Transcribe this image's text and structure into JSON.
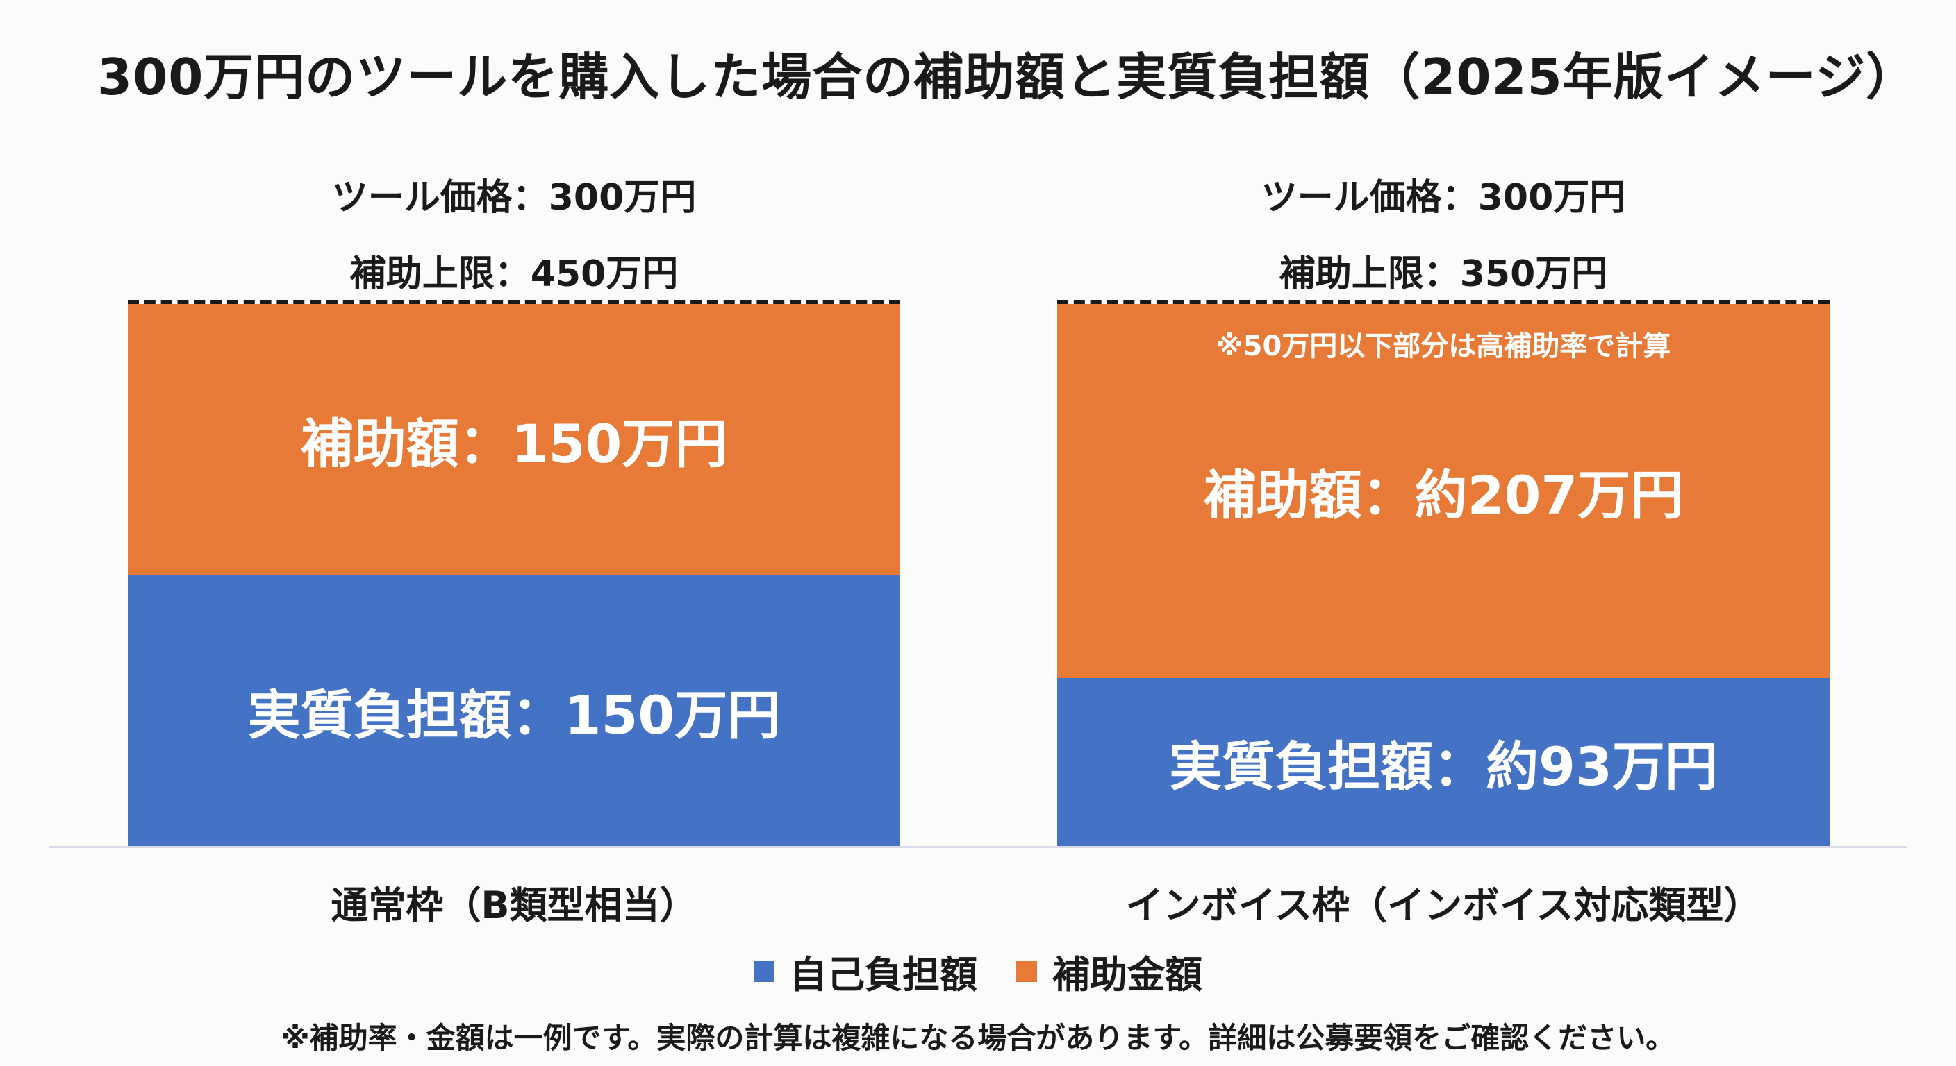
{
  "title": "300万円のツールを購入した場合の補助額と実質負担額（2025年版イメージ）",
  "chart_data": {
    "type": "bar",
    "stacked": true,
    "unit": "万円",
    "categories": [
      "通常枠（B類型相当）",
      "インボイス枠（インボイス対応類型）"
    ],
    "series": [
      {
        "name": "自己負担額",
        "color": "#4472c4",
        "values": [
          150,
          93
        ]
      },
      {
        "name": "補助金額",
        "color": "#e67a36",
        "values": [
          150,
          207
        ]
      }
    ],
    "ylim": [
      0,
      300
    ],
    "grid": false,
    "legend_position": "bottom-center",
    "bars": [
      {
        "price_label": "ツール価格：300万円",
        "cap_label": "補助上限：450万円",
        "subsidy_label": "補助額：150万円",
        "self_label": "実質負担額：150万円",
        "note": ""
      },
      {
        "price_label": "ツール価格：300万円",
        "cap_label": "補助上限：350万円",
        "subsidy_label": "補助額：約207万円",
        "self_label": "実質負担額：約93万円",
        "note": "※50万円以下部分は高補助率で計算"
      }
    ]
  },
  "legend": [
    {
      "label": "自己負担額",
      "color": "#4472c4"
    },
    {
      "label": "補助金額",
      "color": "#e67a36"
    }
  ],
  "footnote": "※補助率・金額は一例です。実際の計算は複雑になる場合があります。詳細は公募要領をご確認ください。"
}
